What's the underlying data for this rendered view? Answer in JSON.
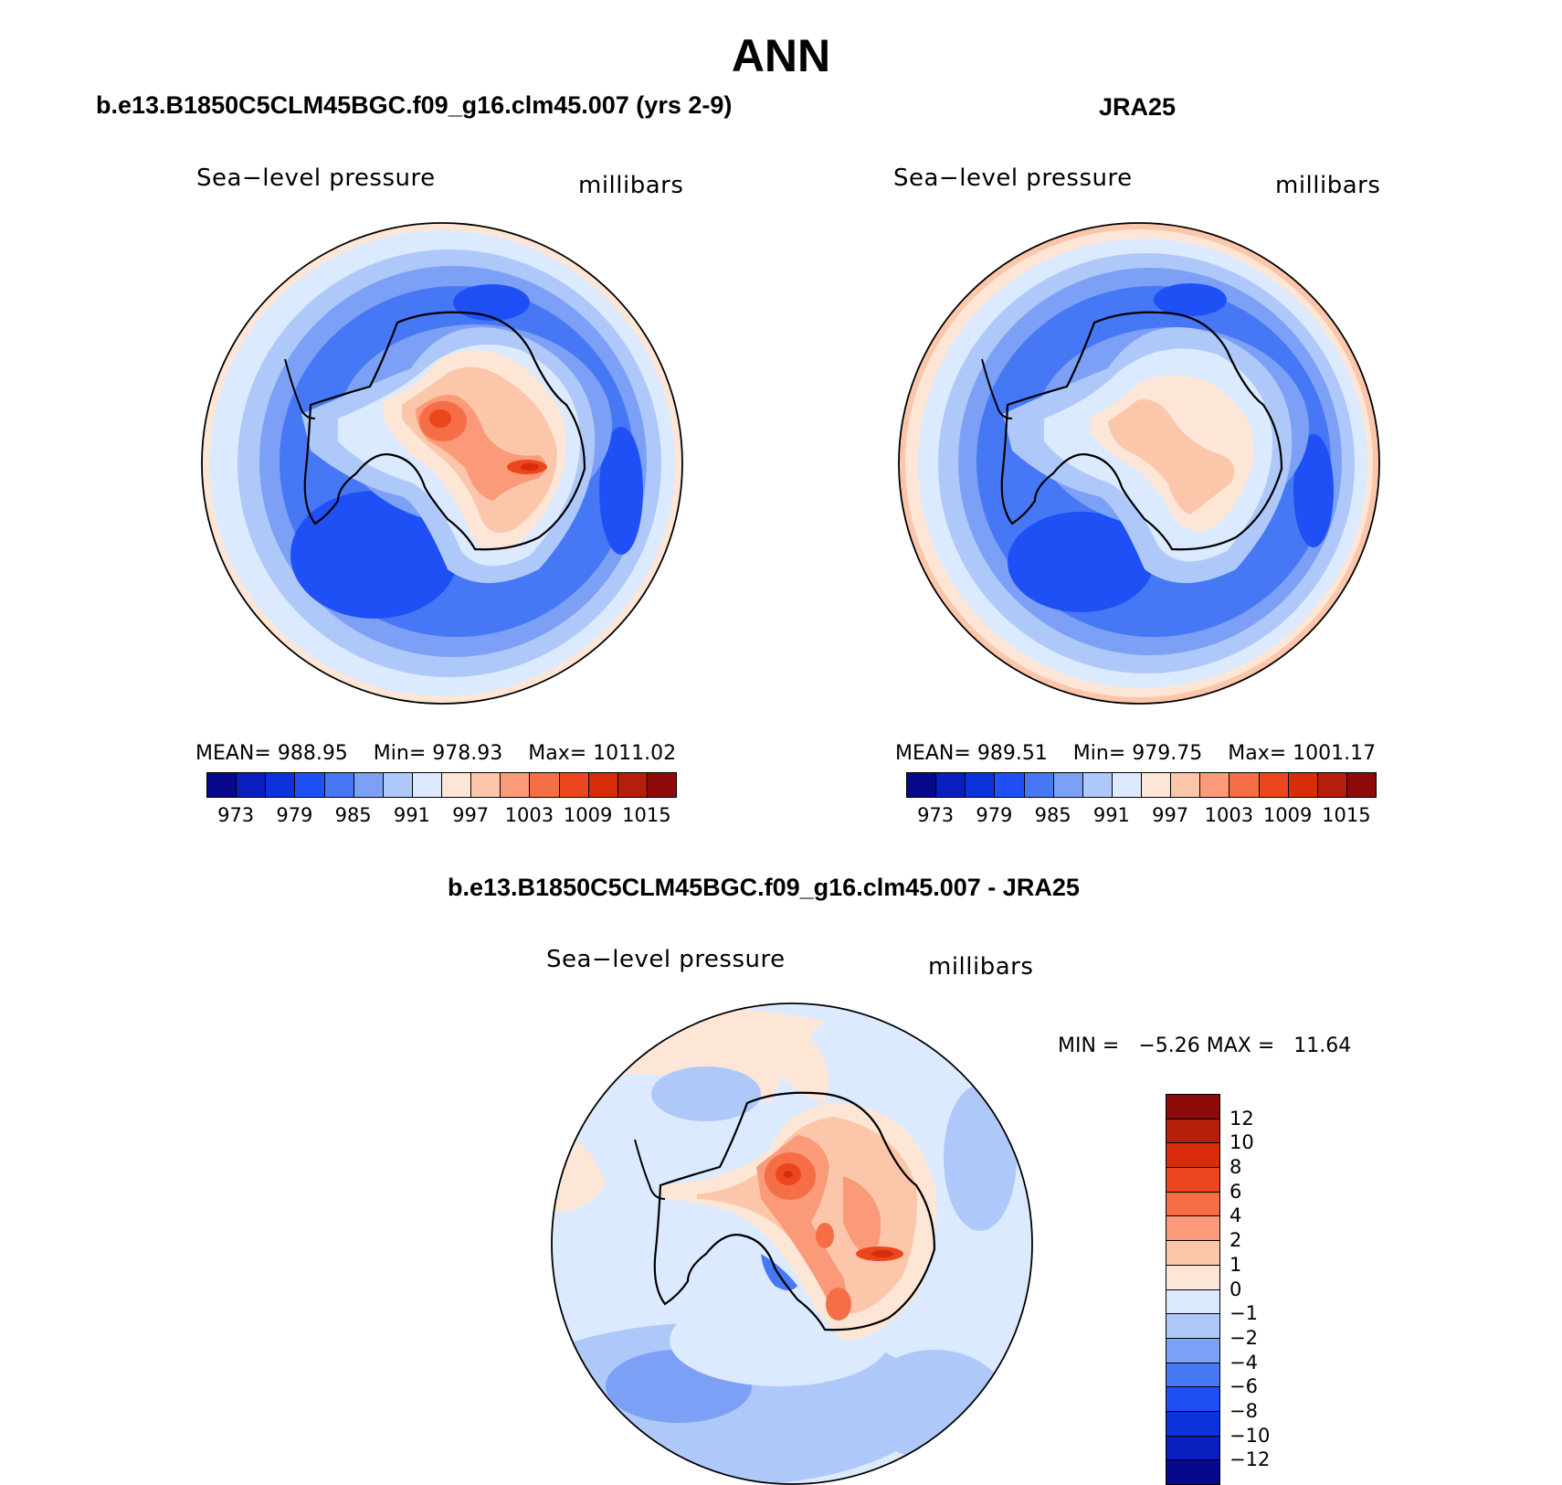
{
  "title": "ANN",
  "colors": {
    "abs_palette": [
      "#08088c",
      "#0a1ebe",
      "#0c32dc",
      "#1e50f5",
      "#4678f5",
      "#7ca0f5",
      "#afc8fa",
      "#dceaff",
      "#fde6d6",
      "#fcc6aa",
      "#fa9a78",
      "#f56e46",
      "#eb461e",
      "#d72d0a",
      "#b41e0a",
      "#8c0a0a"
    ],
    "diff_palette": [
      "#08088c",
      "#0a1ebe",
      "#0c32dc",
      "#1e50f5",
      "#4678f5",
      "#7ca0f5",
      "#afc8fa",
      "#dceaff",
      "#fde6d6",
      "#fcc6aa",
      "#fa9a78",
      "#f56e46",
      "#eb461e",
      "#d72d0a",
      "#b41e0a",
      "#8c0a0a"
    ]
  },
  "panels": [
    {
      "title": "b.e13.B1850C5CLM45BGC.f09_g16.clm45.007 (yrs 2-9)",
      "variable": "Sea−level pressure",
      "units": "millibars",
      "mean_label": "MEAN=",
      "mean": "988.95",
      "min_label": "Min=",
      "min": "978.93",
      "max_label": "Max=",
      "max": "1011.02",
      "colorbar_ticks": [
        "973",
        "979",
        "985",
        "991",
        "997",
        "1003",
        "1009",
        "1015"
      ]
    },
    {
      "title": "JRA25",
      "variable": "Sea−level pressure",
      "units": "millibars",
      "mean_label": "MEAN=",
      "mean": "989.51",
      "min_label": "Min=",
      "min": "979.75",
      "max_label": "Max=",
      "max": "1001.17",
      "colorbar_ticks": [
        "973",
        "979",
        "985",
        "991",
        "997",
        "1003",
        "1009",
        "1015"
      ]
    }
  ],
  "diff_panel": {
    "title": "b.e13.B1850C5CLM45BGC.f09_g16.clm45.007 - JRA25",
    "variable": "Sea−level pressure",
    "units": "millibars",
    "min_label": "MIN =",
    "min": "−5.26",
    "max_label": "MAX =",
    "max": "11.64",
    "colorbar_ticks": [
      "12",
      "10",
      "8",
      "6",
      "4",
      "2",
      "1",
      "0",
      "−1",
      "−2",
      "−4",
      "−6",
      "−8",
      "−10",
      "−12"
    ]
  }
}
